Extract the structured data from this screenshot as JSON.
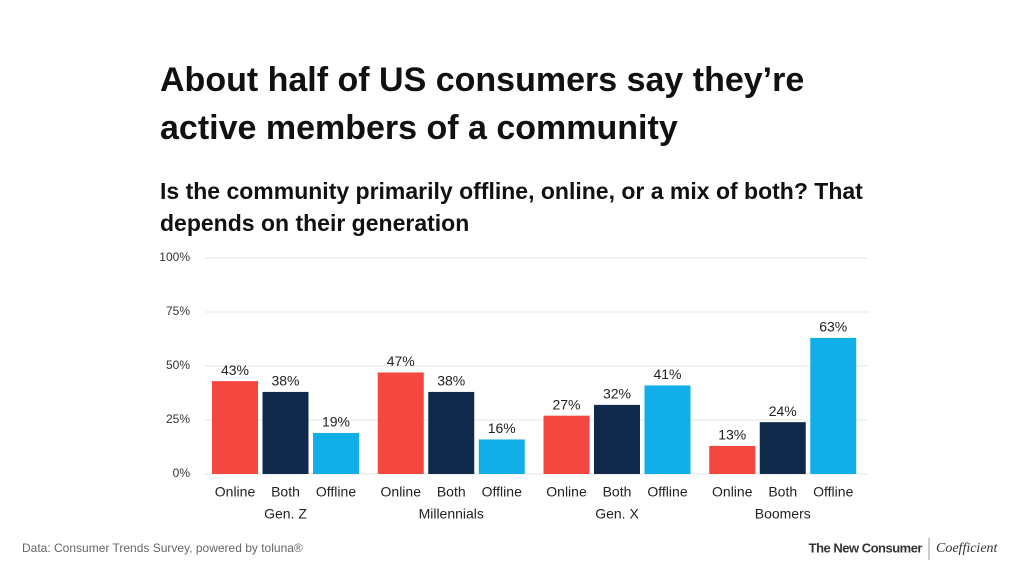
{
  "chart_data": {
    "type": "grouped-bar",
    "title": "About half of US consumers say they’re active members of a community",
    "subtitle": "Is the community primarily offline, online, or a mix of both? That depends on their generation",
    "categories": [
      "Gen. Z",
      "Millennials",
      "Gen. X",
      "Boomers"
    ],
    "series": [
      {
        "name": "Online",
        "color": "#f4473f",
        "values": [
          43,
          47,
          27,
          13
        ],
        "value_labels": [
          "43%",
          "47%",
          "27%",
          "13%"
        ]
      },
      {
        "name": "Both",
        "color": "#0f2a4a",
        "values": [
          38,
          38,
          32,
          24
        ],
        "value_labels": [
          "38%",
          "38%",
          "32%",
          "24%"
        ]
      },
      {
        "name": "Offline",
        "color": "#12aee8",
        "values": [
          19,
          16,
          41,
          63
        ],
        "value_labels": [
          "19%",
          "16%",
          "41%",
          "63%"
        ]
      }
    ],
    "ylim": [
      0,
      100
    ],
    "yticks": [
      {
        "value": 0,
        "label": "0%"
      },
      {
        "value": 25,
        "label": "25%"
      },
      {
        "value": 50,
        "label": "50%"
      },
      {
        "value": 75,
        "label": "75%"
      },
      {
        "value": 100,
        "label": "100%"
      }
    ],
    "grid": true,
    "source": "Data: Consumer Trends Survey, powered by toluna®",
    "brands": [
      "The New Consumer",
      "Coefficient"
    ]
  }
}
